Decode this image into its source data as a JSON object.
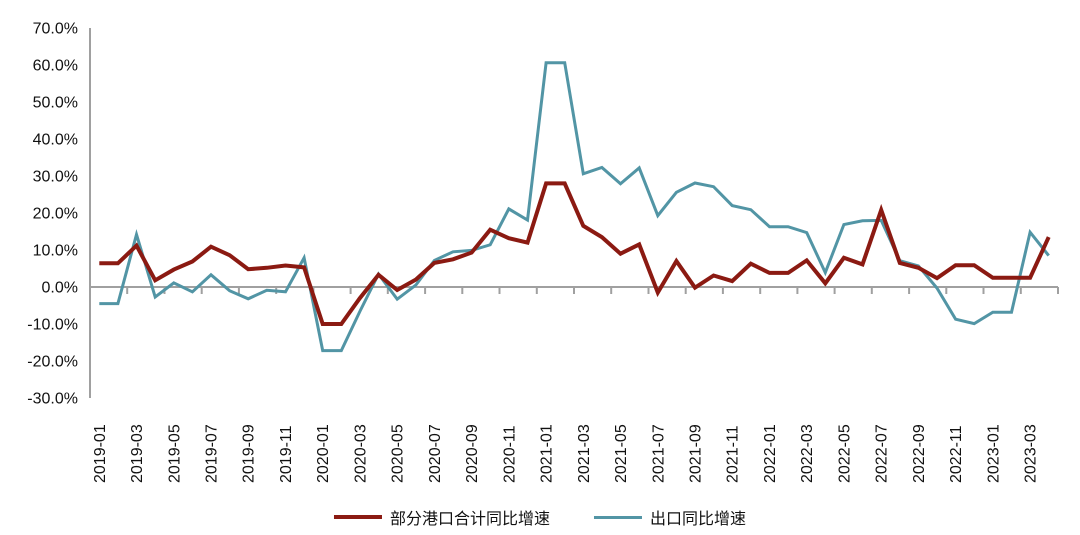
{
  "chart_data": {
    "type": "line",
    "title": "",
    "xlabel": "",
    "ylabel": "",
    "ylim": [
      -30,
      70
    ],
    "grid": "zero-line-only",
    "legend_position": "bottom-center",
    "axis_color": "#a0a0a0",
    "y_ticks": [
      70,
      60,
      50,
      40,
      30,
      20,
      10,
      0,
      -10,
      -20,
      -30
    ],
    "y_tick_labels": [
      "70.0%",
      "60.0%",
      "50.0%",
      "40.0%",
      "30.0%",
      "20.0%",
      "10.0%",
      "0.0%",
      "-10.0%",
      "-20.0%",
      "-30.0%"
    ],
    "x_tick_label_every": 2,
    "x": [
      "2019-01",
      "2019-02",
      "2019-03",
      "2019-04",
      "2019-05",
      "2019-06",
      "2019-07",
      "2019-08",
      "2019-09",
      "2019-10",
      "2019-11",
      "2019-12",
      "2020-01",
      "2020-02",
      "2020-03",
      "2020-04",
      "2020-05",
      "2020-06",
      "2020-07",
      "2020-08",
      "2020-09",
      "2020-10",
      "2020-11",
      "2020-12",
      "2021-01",
      "2021-02",
      "2021-03",
      "2021-04",
      "2021-05",
      "2021-06",
      "2021-07",
      "2021-08",
      "2021-09",
      "2021-10",
      "2021-11",
      "2021-12",
      "2022-01",
      "2022-02",
      "2022-03",
      "2022-04",
      "2022-05",
      "2022-06",
      "2022-07",
      "2022-08",
      "2022-09",
      "2022-10",
      "2022-11",
      "2022-12",
      "2023-01",
      "2023-02",
      "2023-03",
      "2023-04"
    ],
    "series": [
      {
        "name": "部分港口合计同比增速",
        "color": "#8B1A12",
        "width": 4,
        "values": [
          6.4,
          6.4,
          11.2,
          1.8,
          4.7,
          6.9,
          10.9,
          8.6,
          4.8,
          5.2,
          5.8,
          5.3,
          -10.0,
          -10.0,
          -3.0,
          3.3,
          -0.8,
          2.0,
          6.5,
          7.5,
          9.3,
          15.5,
          13.2,
          12.0,
          28.0,
          28.0,
          16.5,
          13.5,
          9.0,
          11.5,
          -1.5,
          7.0,
          -0.2,
          3.1,
          1.6,
          6.3,
          3.8,
          3.8,
          7.2,
          1.0,
          7.9,
          6.1,
          20.8,
          6.5,
          5.2,
          2.4,
          5.9,
          5.9,
          2.5,
          2.5,
          2.5,
          13.5
        ]
      },
      {
        "name": "出口同比增速",
        "color": "#5295A5",
        "width": 3,
        "values": [
          -4.5,
          -4.5,
          14.2,
          -2.7,
          1.1,
          -1.3,
          3.3,
          -1.0,
          -3.2,
          -0.9,
          -1.3,
          7.9,
          -17.2,
          -17.2,
          -6.6,
          3.5,
          -3.3,
          0.5,
          7.2,
          9.5,
          9.9,
          11.4,
          21.1,
          18.1,
          60.6,
          60.6,
          30.6,
          32.3,
          27.9,
          32.2,
          19.3,
          25.6,
          28.1,
          27.1,
          22.0,
          20.9,
          16.3,
          16.3,
          14.7,
          3.9,
          16.9,
          17.9,
          18.0,
          7.1,
          5.7,
          -0.3,
          -8.7,
          -9.9,
          -6.8,
          -6.8,
          14.8,
          8.5
        ]
      }
    ]
  }
}
